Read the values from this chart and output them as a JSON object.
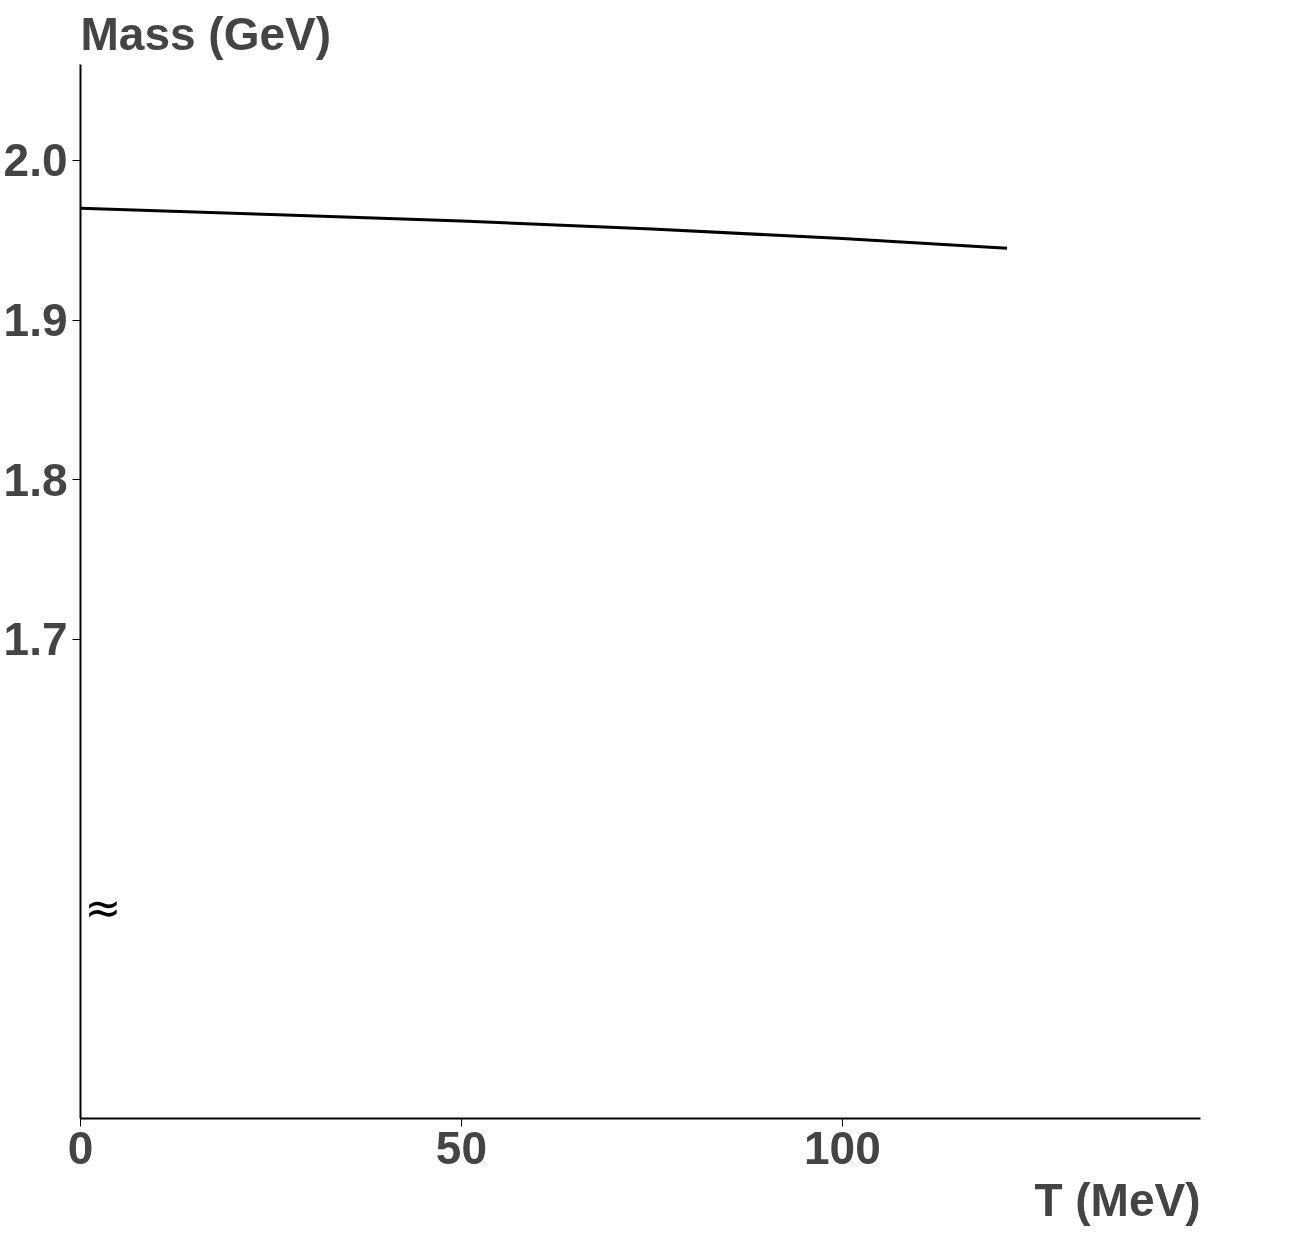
{
  "chart_data": {
    "type": "line",
    "xlabel": "T (MeV)",
    "ylabel": "Mass (GeV)",
    "x": [
      0,
      25,
      50,
      75,
      100,
      121.6
    ],
    "series": [
      {
        "color": "#000000",
        "values": [
          1.97,
          1.966,
          1.962,
          1.957,
          1.951,
          1.945
        ]
      }
    ],
    "xlim": [
      0,
      147
    ],
    "ylim": [
      1.4,
      2.06
    ],
    "xticks": [
      0,
      50,
      100
    ],
    "yticks": [
      1.7,
      1.8,
      1.9,
      {
        "value": 2.0,
        "label": "2.0"
      }
    ],
    "annotations": [
      "≈"
    ],
    "grid": false,
    "marker": "none",
    "line_style": "solid"
  }
}
